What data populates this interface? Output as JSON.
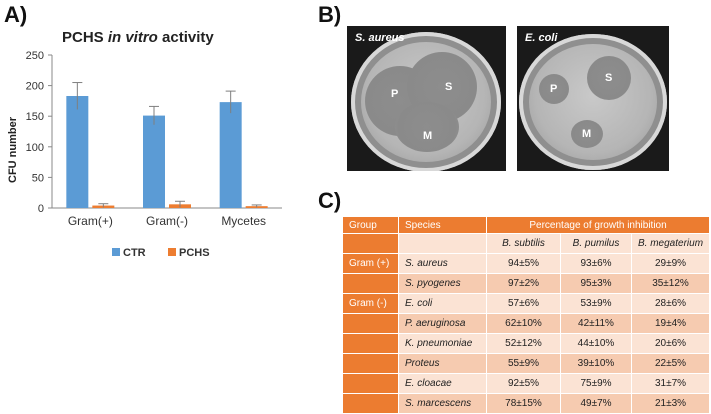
{
  "panels": {
    "a": "A)",
    "b": "B)",
    "c": "C)"
  },
  "chart_data": {
    "type": "bar",
    "title_plain": "PCHS ",
    "title_italic": "in vitro",
    "title_tail": " activity",
    "categories": [
      "Gram(+)",
      "Gram(-)",
      "Mycetes"
    ],
    "series": [
      {
        "name": "CTR",
        "color": "#5b9bd5",
        "values": [
          183,
          151,
          173
        ],
        "errors": [
          22,
          15,
          18
        ]
      },
      {
        "name": "PCHS",
        "color": "#ed7d31",
        "values": [
          4,
          6,
          3
        ],
        "errors": [
          3,
          5,
          2
        ]
      }
    ],
    "ylabel": "CFU number",
    "xlabel": "",
    "ylim": [
      0,
      250
    ],
    "yticks": [
      0,
      50,
      100,
      150,
      200,
      250
    ],
    "grid": false,
    "legend": "bottom"
  },
  "plates": [
    {
      "caption": "S. aureus",
      "labels": {
        "p": "P",
        "s": "S",
        "m": "M"
      }
    },
    {
      "caption": "E. coli",
      "labels": {
        "p": "P",
        "s": "S",
        "m": "M"
      }
    }
  ],
  "table": {
    "headers": {
      "group": "Group",
      "species": "Species",
      "pct": "Percentage of growth inhibition"
    },
    "subheaders": [
      "B. subtilis",
      "B. pumilus",
      "B. megaterium"
    ],
    "rows": [
      {
        "group": "Gram (+)",
        "species": "S. aureus",
        "values": [
          "94±5%",
          "93±6%",
          "29±9%"
        ]
      },
      {
        "group": "",
        "species": "S. pyogenes",
        "values": [
          "97±2%",
          "95±3%",
          "35±12%"
        ]
      },
      {
        "group": "Gram (-)",
        "species": "E. coli",
        "values": [
          "57±6%",
          "53±9%",
          "28±6%"
        ]
      },
      {
        "group": "",
        "species": "P. aeruginosa",
        "values": [
          "62±10%",
          "42±11%",
          "19±4%"
        ]
      },
      {
        "group": "",
        "species": "K. pneumoniae",
        "values": [
          "52±12%",
          "44±10%",
          "20±6%"
        ]
      },
      {
        "group": "",
        "species": "Proteus",
        "values": [
          "55±9%",
          "39±10%",
          "22±5%"
        ]
      },
      {
        "group": "",
        "species": "E. cloacae",
        "values": [
          "92±5%",
          "75±9%",
          "31±7%"
        ]
      },
      {
        "group": "",
        "species": "S. marcescens",
        "values": [
          "78±15%",
          "49±7%",
          "21±3%"
        ]
      }
    ]
  }
}
